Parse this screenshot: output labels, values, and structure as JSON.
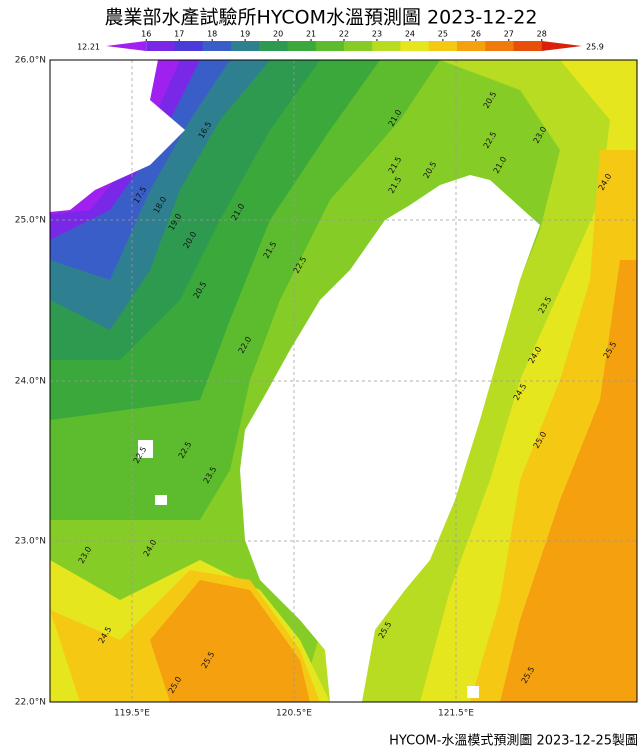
{
  "header": {
    "title": "農業部水產試驗所HYCOM水溫預測圖 2023-12-22"
  },
  "colorbar": {
    "min_label": "12.21",
    "max_label": "25.9",
    "ticks": [
      16,
      17,
      18,
      19,
      20,
      21,
      22,
      23,
      24,
      25,
      26,
      27,
      28
    ],
    "colors": [
      "#a020f0",
      "#7a28e8",
      "#4a3ad8",
      "#3a5ec8",
      "#2e8090",
      "#2e9a50",
      "#3aa83a",
      "#5cbc2e",
      "#86cc26",
      "#b8dc22",
      "#e6e61e",
      "#f5c814",
      "#f5a00f",
      "#f07a0c",
      "#e8500a",
      "#d8200a"
    ]
  },
  "map": {
    "lat_labels": [
      "26.0°N",
      "25.0°N",
      "24.0°N",
      "23.0°N",
      "22.0°N"
    ],
    "lon_labels": [
      "119.5°E",
      "120.5°E",
      "121.5°E"
    ],
    "contour_labels": [
      "16.5",
      "17.5",
      "18.0",
      "19.0",
      "20.0",
      "20.5",
      "21.0",
      "21.5",
      "22.5",
      "22.0",
      "21.0",
      "21.5",
      "20.5",
      "20.5",
      "22.5",
      "23.0",
      "24.0",
      "21.5",
      "23.5",
      "24.0",
      "24.5",
      "25.0",
      "25.5",
      "22.5",
      "22.5",
      "23.5",
      "23.0",
      "24.0",
      "24.5",
      "25.5",
      "25.0",
      "25.5",
      "25.5",
      "21.0"
    ]
  },
  "footer": {
    "text": "HYCOM-水溫模式預測圖 2023-12-25製圖"
  }
}
